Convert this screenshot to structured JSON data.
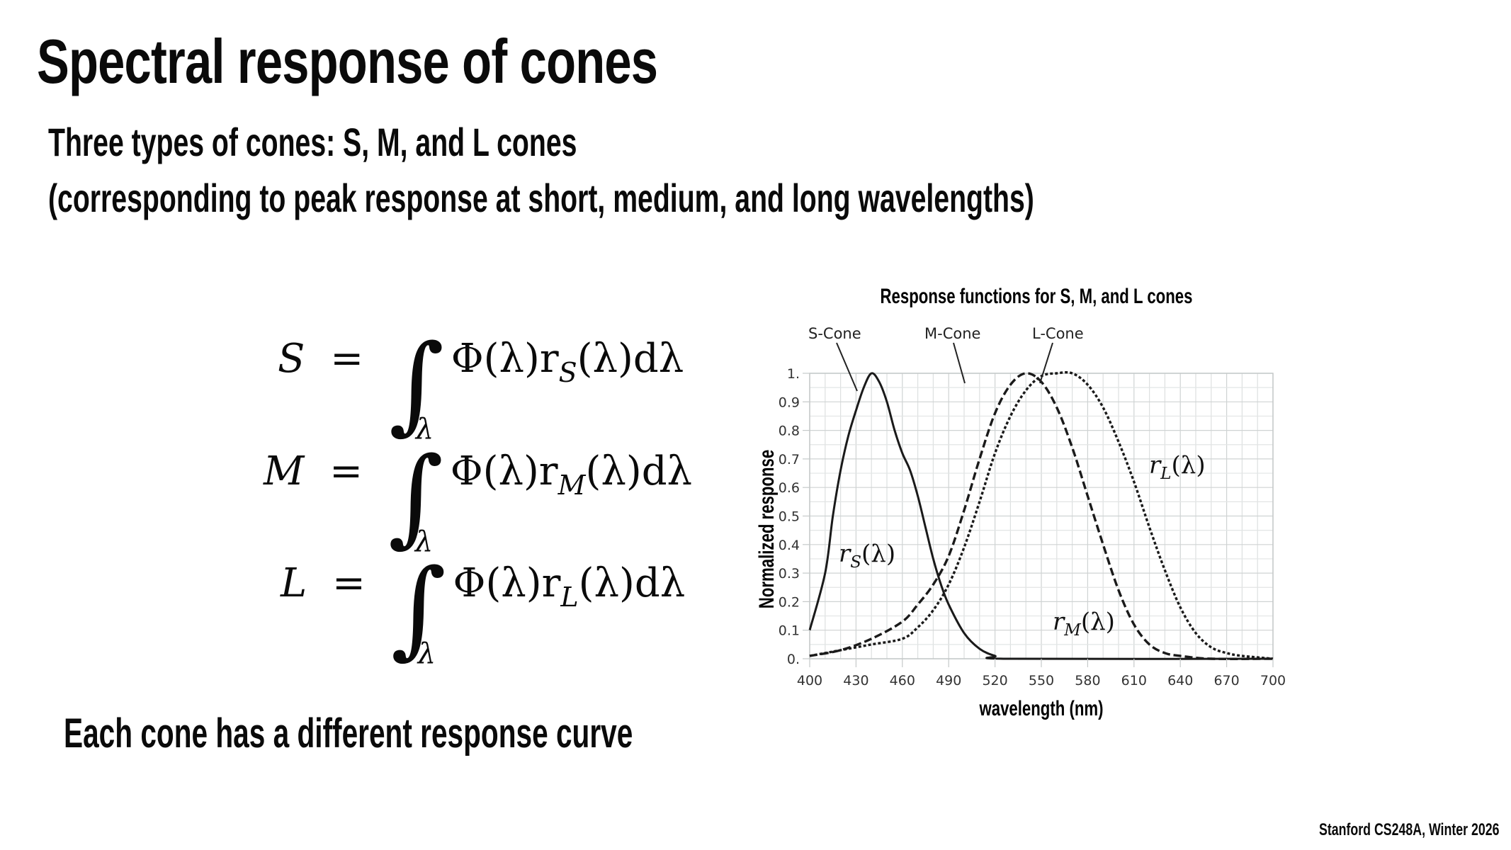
{
  "slide": {
    "title": "Spectral response of cones",
    "subtitle_line1": "Three types of cones: S, M, and L cones",
    "subtitle_line2": "(corresponding to peak response at short, medium, and long wavelengths)",
    "bottom_text": "Each cone has a different response curve",
    "footer": "Stanford CS248A, Winter 2026"
  },
  "equations": [
    {
      "lhs": "S",
      "sub": "S",
      "integrand_pre": "Φ(λ)r",
      "integrand_post": "(λ)dλ",
      "int_var": "λ"
    },
    {
      "lhs": "M",
      "sub": "M",
      "integrand_pre": "Φ(λ)r",
      "integrand_post": "(λ)dλ",
      "int_var": "λ"
    },
    {
      "lhs": "L",
      "sub": "L",
      "integrand_pre": "Φ(λ)r",
      "integrand_post": "(λ)dλ",
      "int_var": "λ"
    }
  ],
  "chart_data": {
    "type": "line",
    "title": "Response functions for S, M, and L cones",
    "xlabel": "wavelength (nm)",
    "ylabel": "Normalized response",
    "xlim": [
      400,
      700
    ],
    "ylim": [
      0,
      1
    ],
    "xticks": [
      400,
      430,
      460,
      490,
      520,
      550,
      580,
      610,
      640,
      670,
      700
    ],
    "yticks": [
      "0.",
      "0.1",
      "0.2",
      "0.3",
      "0.4",
      "0.5",
      "0.6",
      "0.7",
      "0.8",
      "0.9",
      "1."
    ],
    "grid": true,
    "callouts": [
      "S-Cone",
      "M-Cone",
      "L-Cone"
    ],
    "curve_labels": {
      "S": "r_S(λ)",
      "M": "r_M(λ)",
      "L": "r_L(λ)"
    },
    "series": [
      {
        "name": "S-Cone",
        "style": "solid",
        "x": [
          400,
          410,
          415,
          420,
          425,
          430,
          435,
          440,
          445,
          450,
          455,
          460,
          465,
          470,
          475,
          480,
          485,
          490,
          500,
          510,
          520,
          530,
          700
        ],
        "values": [
          0.1,
          0.3,
          0.5,
          0.66,
          0.78,
          0.87,
          0.95,
          1.0,
          0.97,
          0.9,
          0.8,
          0.72,
          0.66,
          0.57,
          0.46,
          0.35,
          0.26,
          0.19,
          0.09,
          0.035,
          0.01,
          0.0,
          0.0
        ]
      },
      {
        "name": "M-Cone",
        "style": "dashed",
        "x": [
          400,
          420,
          440,
          460,
          470,
          480,
          490,
          500,
          510,
          520,
          530,
          540,
          550,
          560,
          570,
          580,
          590,
          600,
          610,
          620,
          630,
          640,
          660,
          700
        ],
        "values": [
          0.01,
          0.03,
          0.07,
          0.13,
          0.19,
          0.26,
          0.36,
          0.52,
          0.7,
          0.86,
          0.96,
          1.0,
          0.97,
          0.88,
          0.74,
          0.57,
          0.4,
          0.24,
          0.12,
          0.05,
          0.02,
          0.01,
          0.0,
          0.0
        ]
      },
      {
        "name": "L-Cone",
        "style": "dotted",
        "x": [
          400,
          420,
          440,
          460,
          470,
          480,
          490,
          500,
          510,
          520,
          530,
          540,
          550,
          560,
          570,
          580,
          590,
          600,
          610,
          620,
          630,
          640,
          650,
          660,
          670,
          680,
          700
        ],
        "values": [
          0.01,
          0.03,
          0.05,
          0.07,
          0.11,
          0.17,
          0.26,
          0.39,
          0.55,
          0.72,
          0.85,
          0.94,
          0.99,
          1.0,
          1.0,
          0.96,
          0.88,
          0.76,
          0.62,
          0.46,
          0.31,
          0.18,
          0.09,
          0.04,
          0.02,
          0.01,
          0.0
        ]
      }
    ]
  }
}
